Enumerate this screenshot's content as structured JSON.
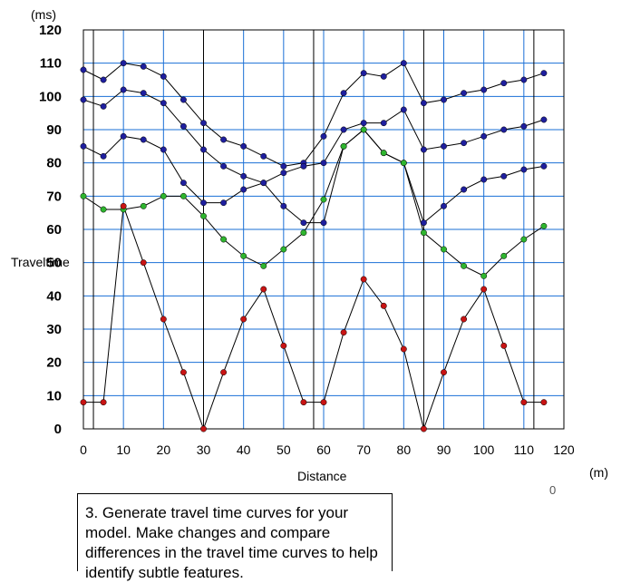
{
  "chart_data": {
    "type": "scatter",
    "xlabel": "Distance",
    "ylabel": "Traveltime",
    "xunit": "(m)",
    "yunit": "(ms)",
    "xlim": [
      0,
      120
    ],
    "ylim": [
      0,
      120
    ],
    "xticks": [
      "0",
      "10",
      "20",
      "30",
      "40",
      "50",
      "60",
      "70",
      "80",
      "90",
      "100",
      "110",
      "120"
    ],
    "yticks": [
      "0",
      "10",
      "20",
      "30",
      "40",
      "50",
      "60",
      "70",
      "80",
      "90",
      "100",
      "110",
      "120"
    ],
    "grid": true,
    "grid_color": "#1a6fd6",
    "source_positions": [
      2.5,
      57.5,
      112.5
    ],
    "receiver_lines": [
      30,
      85
    ],
    "series": [
      {
        "color": "#1f1f9e",
        "x": [
          0,
          5,
          10,
          15,
          20,
          25,
          30,
          35,
          40,
          45,
          50,
          55,
          60,
          65,
          70,
          75,
          80,
          85,
          90,
          95,
          100,
          105,
          110,
          115
        ],
        "y": [
          108,
          105,
          110,
          109,
          106,
          99,
          92,
          87,
          85,
          82,
          79,
          80,
          88,
          101,
          107,
          106,
          110,
          98,
          99,
          101,
          102,
          104,
          105,
          107
        ]
      },
      {
        "color": "#1f1f9e",
        "x": [
          0,
          5,
          10,
          15,
          20,
          25,
          30,
          35,
          40,
          45,
          50,
          55,
          60,
          65,
          70,
          75,
          80,
          85,
          90,
          95,
          100,
          105,
          110,
          115
        ],
        "y": [
          99,
          97,
          102,
          101,
          98,
          91,
          84,
          79,
          76,
          74,
          77,
          79,
          80,
          90,
          92,
          92,
          96,
          84,
          85,
          86,
          88,
          90,
          91,
          93
        ]
      },
      {
        "color": "#1f1f9e",
        "x": [
          0,
          5,
          10,
          15,
          20,
          25,
          30,
          35,
          40,
          45,
          50,
          55,
          60,
          65,
          70,
          75,
          80,
          85,
          90,
          95,
          100,
          105,
          110,
          115
        ],
        "y": [
          85,
          82,
          88,
          87,
          84,
          74,
          68,
          68,
          72,
          74,
          67,
          62,
          62,
          85,
          90,
          83,
          80,
          62,
          67,
          72,
          75,
          76,
          78,
          79
        ]
      },
      {
        "color": "#2fb52f",
        "x": [
          0,
          5,
          10,
          15,
          20,
          25,
          30,
          35,
          40,
          45,
          50,
          55,
          60,
          65,
          70,
          75,
          80,
          85,
          90,
          95,
          100,
          105,
          110,
          115
        ],
        "y": [
          70,
          66,
          66,
          67,
          70,
          70,
          64,
          57,
          52,
          49,
          54,
          59,
          69,
          85,
          90,
          83,
          80,
          59,
          54,
          49,
          46,
          52,
          57,
          61
        ]
      },
      {
        "color": "#c81414",
        "x": [
          0,
          5,
          10,
          15,
          20,
          25,
          30,
          35,
          40,
          45,
          50,
          55,
          60,
          65,
          70,
          75,
          80,
          85,
          90,
          95,
          100,
          105,
          110,
          115
        ],
        "y": [
          8,
          8,
          67,
          50,
          33,
          17,
          0,
          17,
          33,
          42,
          25,
          8,
          8,
          29,
          45,
          37,
          24,
          0,
          17,
          33,
          42,
          25,
          8,
          8
        ]
      }
    ]
  },
  "caption": {
    "text": "3. Generate travel time curves for your model. Make changes and compare differences in the travel time curves to help identify subtle features."
  },
  "stray_label": "0"
}
